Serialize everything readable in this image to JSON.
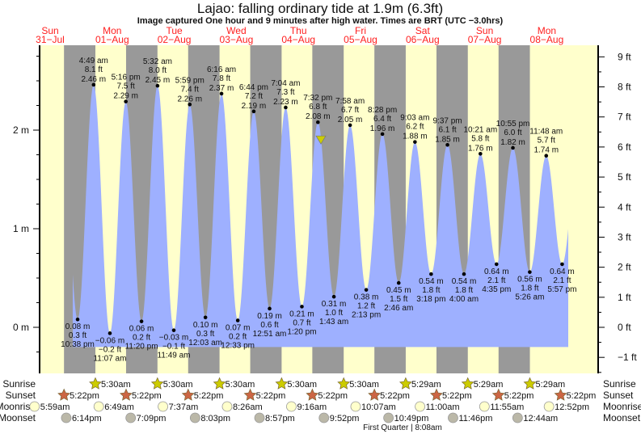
{
  "chart_data": {
    "type": "area",
    "title": "Lajao: falling  ordinary tide at 1.9m (6.3ft)",
    "subtitle": "Image captured One hour and 9 minutes after high water. Times are BRT (UTC −3.0hrs)",
    "days": [
      {
        "dow": "Sun",
        "date": "31−Jul"
      },
      {
        "dow": "Mon",
        "date": "01−Aug"
      },
      {
        "dow": "Tue",
        "date": "02−Aug"
      },
      {
        "dow": "Wed",
        "date": "03−Aug"
      },
      {
        "dow": "Thu",
        "date": "04−Aug"
      },
      {
        "dow": "Fri",
        "date": "05−Aug"
      },
      {
        "dow": "Sat",
        "date": "06−Aug"
      },
      {
        "dow": "Sun",
        "date": "07−Aug"
      },
      {
        "dow": "Mon",
        "date": "08−Aug"
      }
    ],
    "y_left": {
      "unit": "m",
      "ticks": [
        "0 m",
        "1 m",
        "2 m"
      ],
      "tick_values": [
        0,
        1,
        2
      ]
    },
    "y_right": {
      "unit": "ft",
      "ticks": [
        "−1 ft",
        "0 ft",
        "1 ft",
        "2 ft",
        "3 ft",
        "4 ft",
        "5 ft",
        "6 ft",
        "7 ft",
        "8 ft",
        "9 ft"
      ],
      "tick_values": [
        -1,
        0,
        1,
        2,
        3,
        4,
        5,
        6,
        7,
        8,
        9
      ]
    },
    "tides": [
      {
        "day": 0,
        "type": "low",
        "time": "10:38 pm",
        "m": 0.08,
        "ft": "0.3 ft",
        "m_label": "0.08 m"
      },
      {
        "day": 1,
        "type": "high",
        "time": "4:49 am",
        "m": 2.46,
        "ft": "8.1 ft",
        "m_label": "2.46 m"
      },
      {
        "day": 1,
        "type": "low",
        "time": "11:07 am",
        "m": -0.06,
        "ft": "−0.2 ft",
        "m_label": "−0.06 m"
      },
      {
        "day": 1,
        "type": "high",
        "time": "5:16 pm",
        "m": 2.29,
        "ft": "7.5 ft",
        "m_label": "2.29 m"
      },
      {
        "day": 1,
        "type": "low",
        "time": "11:20 pm",
        "m": 0.06,
        "ft": "0.2 ft",
        "m_label": "0.06 m"
      },
      {
        "day": 2,
        "type": "high",
        "time": "5:32 am",
        "m": 2.45,
        "ft": "8.0 ft",
        "m_label": "2.45 m"
      },
      {
        "day": 2,
        "type": "low",
        "time": "11:49 am",
        "m": -0.03,
        "ft": "−0.1 ft",
        "m_label": "−0.03 m"
      },
      {
        "day": 2,
        "type": "high",
        "time": "5:59 pm",
        "m": 2.26,
        "ft": "7.4 ft",
        "m_label": "2.26 m"
      },
      {
        "day": 3,
        "type": "low",
        "time": "12:03 am",
        "m": 0.1,
        "ft": "0.3 ft",
        "m_label": "0.10 m"
      },
      {
        "day": 3,
        "type": "high",
        "time": "6:16 am",
        "m": 2.37,
        "ft": "7.8 ft",
        "m_label": "2.37 m"
      },
      {
        "day": 3,
        "type": "low",
        "time": "12:33 pm",
        "m": 0.07,
        "ft": "0.2 ft",
        "m_label": "0.07 m"
      },
      {
        "day": 3,
        "type": "high",
        "time": "6:44 pm",
        "m": 2.19,
        "ft": "7.2 ft",
        "m_label": "2.19 m"
      },
      {
        "day": 4,
        "type": "low",
        "time": "12:51 am",
        "m": 0.19,
        "ft": "0.6 ft",
        "m_label": "0.19 m"
      },
      {
        "day": 4,
        "type": "high",
        "time": "7:04 am",
        "m": 2.23,
        "ft": "7.3 ft",
        "m_label": "2.23 m"
      },
      {
        "day": 4,
        "type": "low",
        "time": "1:20 pm",
        "m": 0.21,
        "ft": "0.7 ft",
        "m_label": "0.21 m"
      },
      {
        "day": 4,
        "type": "high",
        "time": "7:32 pm",
        "m": 2.08,
        "ft": "6.8 ft",
        "m_label": "2.08 m"
      },
      {
        "day": 5,
        "type": "low",
        "time": "1:43 am",
        "m": 0.31,
        "ft": "1.0 ft",
        "m_label": "0.31 m"
      },
      {
        "day": 5,
        "type": "high",
        "time": "7:58 am",
        "m": 2.05,
        "ft": "6.7 ft",
        "m_label": "2.05 m"
      },
      {
        "day": 5,
        "type": "low",
        "time": "2:13 pm",
        "m": 0.38,
        "ft": "1.2 ft",
        "m_label": "0.38 m"
      },
      {
        "day": 5,
        "type": "high",
        "time": "8:28 pm",
        "m": 1.96,
        "ft": "6.4 ft",
        "m_label": "1.96 m"
      },
      {
        "day": 6,
        "type": "low",
        "time": "2:46 am",
        "m": 0.45,
        "ft": "1.5 ft",
        "m_label": "0.45 m"
      },
      {
        "day": 6,
        "type": "high",
        "time": "9:03 am",
        "m": 1.88,
        "ft": "6.2 ft",
        "m_label": "1.88 m"
      },
      {
        "day": 6,
        "type": "low",
        "time": "3:18 pm",
        "m": 0.54,
        "ft": "1.8 ft",
        "m_label": "0.54 m"
      },
      {
        "day": 6,
        "type": "high",
        "time": "9:37 pm",
        "m": 1.85,
        "ft": "6.1 ft",
        "m_label": "1.85 m"
      },
      {
        "day": 7,
        "type": "low",
        "time": "4:00 am",
        "m": 0.54,
        "ft": "1.8 ft",
        "m_label": "0.54 m"
      },
      {
        "day": 7,
        "type": "high",
        "time": "10:21 am",
        "m": 1.76,
        "ft": "5.8 ft",
        "m_label": "1.76 m"
      },
      {
        "day": 7,
        "type": "low",
        "time": "4:35 pm",
        "m": 0.64,
        "ft": "2.1 ft",
        "m_label": "0.64 m"
      },
      {
        "day": 7,
        "type": "high",
        "time": "10:55 pm",
        "m": 1.82,
        "ft": "6.0 ft",
        "m_label": "1.82 m"
      },
      {
        "day": 8,
        "type": "low",
        "time": "5:26 am",
        "m": 0.56,
        "ft": "1.8 ft",
        "m_label": "0.56 m"
      },
      {
        "day": 8,
        "type": "high",
        "time": "11:48 am",
        "m": 1.74,
        "ft": "5.7 ft",
        "m_label": "1.74 m"
      },
      {
        "day": 8,
        "type": "low",
        "time": "5:57 pm",
        "m": 0.64,
        "ft": "2.1 ft",
        "m_label": "0.64 m"
      }
    ],
    "current": {
      "day": 4,
      "time": "8:41 pm",
      "m": 1.9
    },
    "rows": {
      "sunrise": {
        "label": "Sunrise",
        "events": [
          {
            "day": 1,
            "time": "5:30am"
          },
          {
            "day": 2,
            "time": "5:30am"
          },
          {
            "day": 3,
            "time": "5:30am"
          },
          {
            "day": 4,
            "time": "5:30am"
          },
          {
            "day": 5,
            "time": "5:30am"
          },
          {
            "day": 6,
            "time": "5:29am"
          },
          {
            "day": 7,
            "time": "5:29am"
          },
          {
            "day": 8,
            "time": "5:29am"
          }
        ]
      },
      "sunset": {
        "label": "Sunset",
        "events": [
          {
            "day": 0,
            "time": "5:22pm"
          },
          {
            "day": 1,
            "time": "5:22pm"
          },
          {
            "day": 2,
            "time": "5:22pm"
          },
          {
            "day": 3,
            "time": "5:22pm"
          },
          {
            "day": 4,
            "time": "5:22pm"
          },
          {
            "day": 5,
            "time": "5:22pm"
          },
          {
            "day": 6,
            "time": "5:22pm"
          },
          {
            "day": 7,
            "time": "5:22pm"
          },
          {
            "day": 8,
            "time": "5:22pm"
          }
        ]
      },
      "moonrise": {
        "label": "Moonrise",
        "events": [
          {
            "day": 0,
            "time": "5:59am"
          },
          {
            "day": 1,
            "time": "6:49am"
          },
          {
            "day": 2,
            "time": "7:37am"
          },
          {
            "day": 3,
            "time": "8:26am"
          },
          {
            "day": 4,
            "time": "9:16am"
          },
          {
            "day": 5,
            "time": "10:07am"
          },
          {
            "day": 6,
            "time": "11:00am"
          },
          {
            "day": 7,
            "time": "11:55am"
          },
          {
            "day": 8,
            "time": "12:52pm"
          }
        ]
      },
      "moonset": {
        "label": "Moonset",
        "events": [
          {
            "day": 0,
            "time": "6:14pm"
          },
          {
            "day": 1,
            "time": "7:09pm"
          },
          {
            "day": 2,
            "time": "8:03pm"
          },
          {
            "day": 3,
            "time": "8:57pm"
          },
          {
            "day": 4,
            "time": "9:52pm"
          },
          {
            "day": 5,
            "time": "10:49pm"
          },
          {
            "day": 6,
            "time": "11:46pm"
          },
          {
            "day": 8,
            "time": "12:44am"
          }
        ]
      }
    },
    "moon_phase": "First Quarter | 8:08am",
    "colors": {
      "day": "#ffffcc",
      "night": "#999999",
      "water": "#9eb0ff",
      "day_label": "#ff2020",
      "sun_rise": "#cccc00",
      "sun_set": "#cc6644",
      "moon_rise": "#ffffcc",
      "moon_set": "#bbb8a8",
      "marker": "#cccc00"
    }
  }
}
